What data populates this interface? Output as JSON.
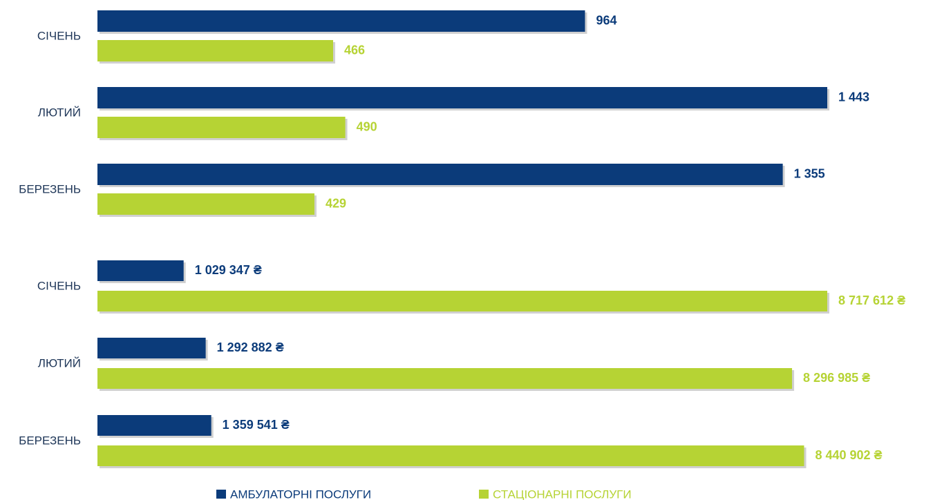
{
  "chart_data": [
    {
      "type": "bar",
      "categories": [
        "СІЧЕНЬ",
        "ЛЮТИЙ",
        "БЕРЕЗЕНЬ"
      ],
      "series": [
        {
          "color": "#0b3b7a",
          "values": [
            964,
            1443,
            1355
          ],
          "value_labels": [
            "964",
            "1 443",
            "1 355"
          ]
        },
        {
          "color": "#b6d334",
          "values": [
            466,
            490,
            429
          ],
          "value_labels": [
            "466",
            "490",
            "429"
          ]
        }
      ],
      "xlim": [
        0,
        1443
      ]
    },
    {
      "type": "bar",
      "categories": [
        "СІЧЕНЬ",
        "ЛЮТИЙ",
        "БЕРЕЗЕНЬ"
      ],
      "series": [
        {
          "name": "АМБУЛАТОРНІ ПОСЛУГИ",
          "color": "#0b3b7a",
          "values": [
            1029347,
            1292882,
            1359541
          ],
          "value_labels": [
            "1 029 347 ₴",
            "1 292 882 ₴",
            "1 359 541 ₴"
          ]
        },
        {
          "name": "СТАЦІОНАРНІ ПОСЛУГИ",
          "color": "#b6d334",
          "values": [
            8717612,
            8296985,
            8440902
          ],
          "value_labels": [
            "8 717 612 ₴",
            "8 296 985 ₴",
            "8 440 902 ₴"
          ]
        }
      ],
      "xlim": [
        0,
        8717612
      ]
    }
  ]
}
